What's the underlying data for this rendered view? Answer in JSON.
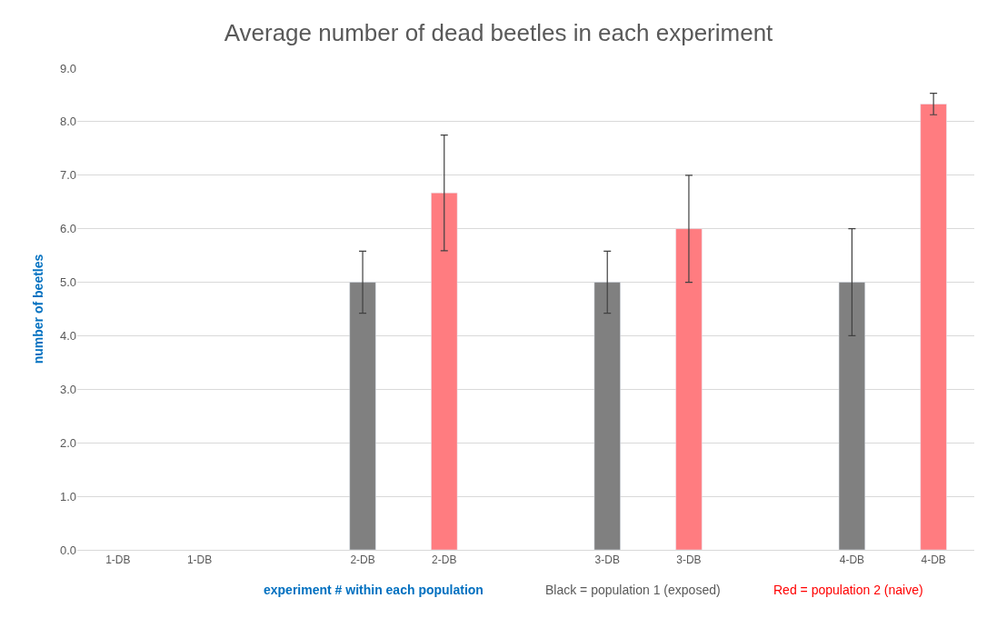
{
  "chart_data": {
    "type": "bar",
    "title": "Average number of dead beetles in each experiment",
    "xlabel": "experiment # within each population",
    "ylabel": "number of beetles",
    "annotations": [
      "Black = population 1 (exposed)",
      "Red = population 2 (naive)"
    ],
    "categories": [
      "1-DB",
      "1-DB",
      null,
      "2-DB",
      "2-DB",
      null,
      "3-DB",
      "3-DB",
      null,
      "4-DB",
      "4-DB"
    ],
    "values": [
      null,
      null,
      null,
      5,
      6.67,
      null,
      5,
      6,
      null,
      5,
      8.33
    ],
    "errors": [
      null,
      null,
      null,
      0.58,
      1.08,
      null,
      0.58,
      1,
      null,
      1,
      0.2
    ],
    "colors": [
      null,
      null,
      null,
      "#808080",
      "#ff7c80",
      null,
      "#808080",
      "#ff7c80",
      null,
      "#808080",
      "#ff7c80"
    ],
    "ylim": [
      0,
      9
    ],
    "yticks": [
      {
        "value": 0,
        "label": "0.0"
      },
      {
        "value": 1,
        "label": "1.0"
      },
      {
        "value": 2,
        "label": "2.0"
      },
      {
        "value": 3,
        "label": "3.0"
      },
      {
        "value": 4,
        "label": "4.0"
      },
      {
        "value": 5,
        "label": "5.0"
      },
      {
        "value": 6,
        "label": "6.0"
      },
      {
        "value": 7,
        "label": "7.0"
      },
      {
        "value": 8,
        "label": "8.0"
      },
      {
        "value": 9,
        "label": "9.0"
      }
    ],
    "grid": "y"
  }
}
